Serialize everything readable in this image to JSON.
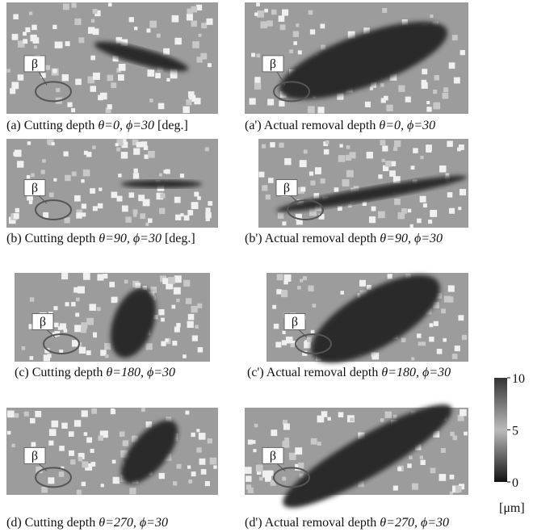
{
  "panels": [
    {
      "marker": "β",
      "caption": "(a) Cutting depth ",
      "params": "θ=0, ϕ=30",
      "suffix": " [deg.]"
    },
    {
      "marker": "β",
      "caption": "(a') Actual removal depth ",
      "params": "θ=0, ϕ=30"
    },
    {
      "marker": "β",
      "caption": "(b) Cutting depth ",
      "params": "θ=90, ϕ=30",
      "suffix": " [deg.]"
    },
    {
      "marker": "β",
      "caption": "(b') Actual removal depth ",
      "params": "θ=90, ϕ=30"
    },
    {
      "marker": "β",
      "caption": "(c) Cutting depth ",
      "params": "θ=180, ϕ=30"
    },
    {
      "marker": "β",
      "caption": "(c') Actual removal depth ",
      "params": "θ=180, ϕ=30"
    },
    {
      "marker": "β",
      "caption": "(d) Cutting depth ",
      "params": "θ=270, ϕ=30"
    },
    {
      "marker": "β",
      "caption": "(d') Actual removal depth ",
      "params": "θ=270, ϕ=30"
    }
  ],
  "colorbar": {
    "range": [
      0,
      10
    ],
    "ticks": [
      10,
      5,
      0
    ],
    "unit": "[μm]"
  }
}
